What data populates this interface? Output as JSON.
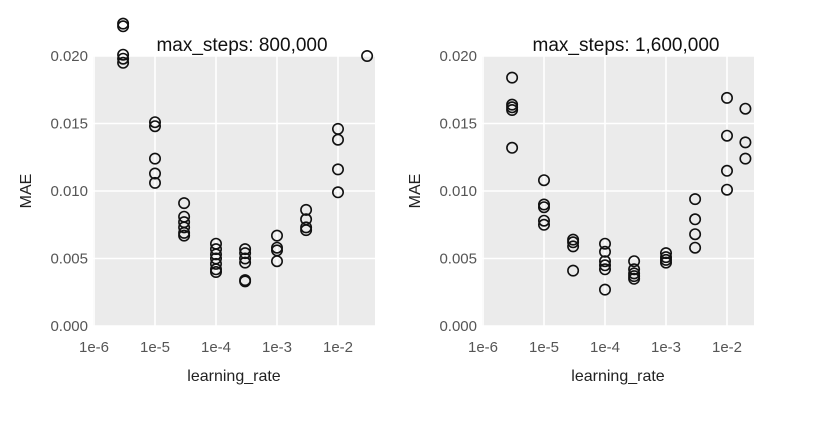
{
  "chart_data": [
    {
      "type": "scatter",
      "title": "max_steps: 800,000",
      "xlabel": "learning_rate",
      "ylabel": "MAE",
      "x_scale": "log10",
      "xlim": [
        "1e-6",
        "3.5e-2"
      ],
      "ylim": [
        0,
        0.02
      ],
      "x_ticks": [
        "1e-6",
        "1e-5",
        "1e-4",
        "1e-3",
        "1e-2"
      ],
      "y_ticks": [
        "0.000",
        "0.005",
        "0.010",
        "0.015",
        "0.020"
      ],
      "grid": true,
      "background": "#ebebeb",
      "points": [
        {
          "x": "3e-6",
          "y": 0.0224
        },
        {
          "x": "3e-6",
          "y": 0.0222
        },
        {
          "x": "3e-6",
          "y": 0.0201
        },
        {
          "x": "3e-6",
          "y": 0.0198
        },
        {
          "x": "3e-6",
          "y": 0.0195
        },
        {
          "x": "1e-5",
          "y": 0.0151
        },
        {
          "x": "1e-5",
          "y": 0.0148
        },
        {
          "x": "1e-5",
          "y": 0.0124
        },
        {
          "x": "1e-5",
          "y": 0.0113
        },
        {
          "x": "1e-5",
          "y": 0.0106
        },
        {
          "x": "3e-5",
          "y": 0.0091
        },
        {
          "x": "3e-5",
          "y": 0.0081
        },
        {
          "x": "3e-5",
          "y": 0.0077
        },
        {
          "x": "3e-5",
          "y": 0.0073
        },
        {
          "x": "3e-5",
          "y": 0.0069
        },
        {
          "x": "3e-5",
          "y": 0.0067
        },
        {
          "x": "1e-4",
          "y": 0.0061
        },
        {
          "x": "1e-4",
          "y": 0.0057
        },
        {
          "x": "1e-4",
          "y": 0.0053
        },
        {
          "x": "1e-4",
          "y": 0.005
        },
        {
          "x": "1e-4",
          "y": 0.0046
        },
        {
          "x": "1e-4",
          "y": 0.0042
        },
        {
          "x": "1e-4",
          "y": 0.004
        },
        {
          "x": "3e-4",
          "y": 0.0057
        },
        {
          "x": "3e-4",
          "y": 0.0054
        },
        {
          "x": "3e-4",
          "y": 0.005
        },
        {
          "x": "3e-4",
          "y": 0.0047
        },
        {
          "x": "3e-4",
          "y": 0.0034
        },
        {
          "x": "3e-4",
          "y": 0.0033
        },
        {
          "x": "1e-3",
          "y": 0.0067
        },
        {
          "x": "1e-3",
          "y": 0.0058
        },
        {
          "x": "1e-3",
          "y": 0.0056
        },
        {
          "x": "1e-3",
          "y": 0.0048
        },
        {
          "x": "3e-3",
          "y": 0.0086
        },
        {
          "x": "3e-3",
          "y": 0.0079
        },
        {
          "x": "3e-3",
          "y": 0.0073
        },
        {
          "x": "3e-3",
          "y": 0.0071
        },
        {
          "x": "1e-2",
          "y": 0.0146
        },
        {
          "x": "1e-2",
          "y": 0.0138
        },
        {
          "x": "1e-2",
          "y": 0.0116
        },
        {
          "x": "1e-2",
          "y": 0.0099
        },
        {
          "x": "3e-2",
          "y": 0.02
        }
      ]
    },
    {
      "type": "scatter",
      "title": "max_steps: 1,600,000",
      "xlabel": "learning_rate",
      "ylabel": "MAE",
      "x_scale": "log10",
      "xlim": [
        "1e-6",
        "3.5e-2"
      ],
      "ylim": [
        0,
        0.02
      ],
      "x_ticks": [
        "1e-6",
        "1e-5",
        "1e-4",
        "1e-3",
        "1e-2"
      ],
      "y_ticks": [
        "0.000",
        "0.005",
        "0.010",
        "0.015",
        "0.020"
      ],
      "grid": true,
      "background": "#ebebeb",
      "points": [
        {
          "x": "3e-6",
          "y": 0.0184
        },
        {
          "x": "3e-6",
          "y": 0.0164
        },
        {
          "x": "3e-6",
          "y": 0.0162
        },
        {
          "x": "3e-6",
          "y": 0.016
        },
        {
          "x": "3e-6",
          "y": 0.0132
        },
        {
          "x": "1e-5",
          "y": 0.0108
        },
        {
          "x": "1e-5",
          "y": 0.009
        },
        {
          "x": "1e-5",
          "y": 0.0088
        },
        {
          "x": "1e-5",
          "y": 0.0078
        },
        {
          "x": "1e-5",
          "y": 0.0075
        },
        {
          "x": "3e-5",
          "y": 0.0064
        },
        {
          "x": "3e-5",
          "y": 0.0062
        },
        {
          "x": "3e-5",
          "y": 0.0059
        },
        {
          "x": "3e-5",
          "y": 0.0041
        },
        {
          "x": "1e-4",
          "y": 0.0061
        },
        {
          "x": "1e-4",
          "y": 0.0055
        },
        {
          "x": "1e-4",
          "y": 0.0048
        },
        {
          "x": "1e-4",
          "y": 0.0045
        },
        {
          "x": "1e-4",
          "y": 0.0042
        },
        {
          "x": "1e-4",
          "y": 0.0027
        },
        {
          "x": "3e-4",
          "y": 0.0048
        },
        {
          "x": "3e-4",
          "y": 0.0042
        },
        {
          "x": "3e-4",
          "y": 0.0039
        },
        {
          "x": "3e-4",
          "y": 0.0037
        },
        {
          "x": "3e-4",
          "y": 0.0035
        },
        {
          "x": "1e-3",
          "y": 0.0054
        },
        {
          "x": "1e-3",
          "y": 0.0051
        },
        {
          "x": "1e-3",
          "y": 0.0049
        },
        {
          "x": "1e-3",
          "y": 0.0047
        },
        {
          "x": "3e-3",
          "y": 0.0094
        },
        {
          "x": "3e-3",
          "y": 0.0079
        },
        {
          "x": "3e-3",
          "y": 0.0068
        },
        {
          "x": "3e-3",
          "y": 0.0058
        },
        {
          "x": "1e-2",
          "y": 0.0169
        },
        {
          "x": "1e-2",
          "y": 0.0141
        },
        {
          "x": "1e-2",
          "y": 0.0115
        },
        {
          "x": "1e-2",
          "y": 0.0101
        },
        {
          "x": "2e-2",
          "y": 0.0161
        },
        {
          "x": "2e-2",
          "y": 0.0136
        },
        {
          "x": "2e-2",
          "y": 0.0124
        }
      ]
    }
  ]
}
